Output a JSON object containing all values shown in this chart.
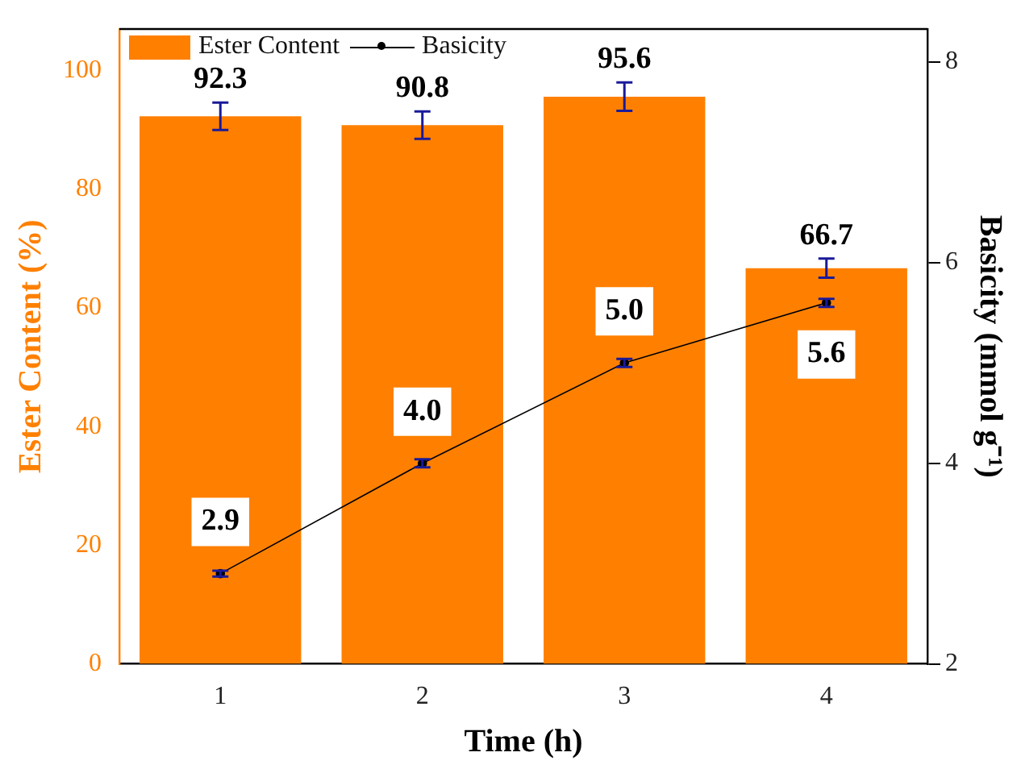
{
  "chart_data": {
    "type": "bar",
    "xlabel": "Time (h)",
    "ylabel": "Ester Content (%)",
    "y2label": "Basicity (mmol g⁻¹)",
    "categories": [
      "1",
      "2",
      "3",
      "4"
    ],
    "series": [
      {
        "name": "Ester Content",
        "color": "#ff8000",
        "values": [
          92.3,
          90.8,
          95.6,
          66.7
        ],
        "errors": [
          2.3,
          2.3,
          2.4,
          1.6
        ],
        "value_labels": [
          "92.3",
          "90.8",
          "95.6",
          "66.7"
        ]
      },
      {
        "name": "Basicity",
        "type": "line",
        "axis": "y2",
        "color": "#000000",
        "values": [
          2.9,
          4.0,
          5.0,
          5.6
        ],
        "errors": [
          0.03,
          0.04,
          0.04,
          0.04
        ],
        "value_labels": [
          "2.9",
          "4.0",
          "5.0",
          "5.6"
        ],
        "marker": "circle",
        "line_style": "solid"
      }
    ],
    "ylim": [
      0,
      107
    ],
    "yticks": [
      0,
      20,
      40,
      60,
      80,
      100
    ],
    "y2lim": [
      2,
      8.33
    ],
    "y2ticks": [
      2,
      4,
      6,
      8
    ],
    "legend": "top left",
    "grid": false
  }
}
